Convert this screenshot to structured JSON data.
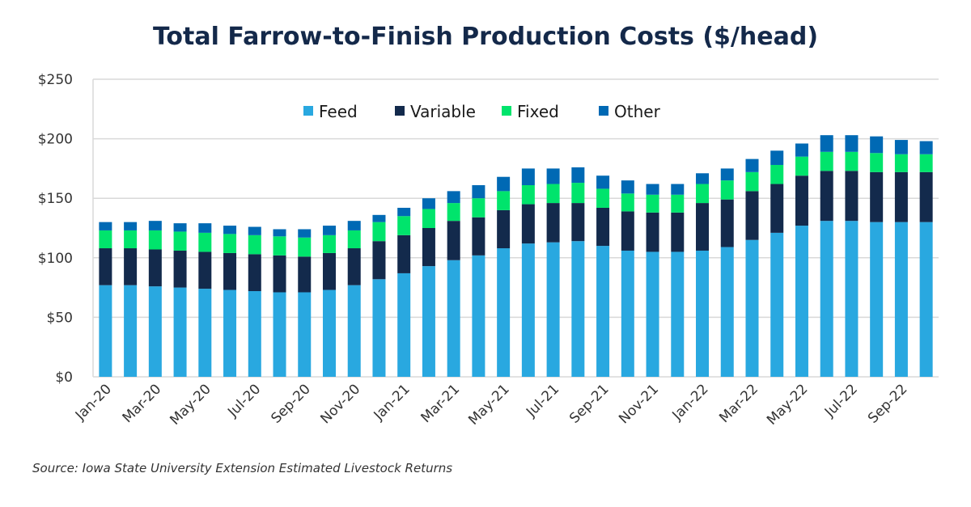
{
  "chart_data": {
    "type": "bar",
    "stacked": true,
    "title": "Total Farrow-to-Finish Production Costs ($/head)",
    "source": "Source: Iowa State University Extension Estimated Livestock Returns",
    "categories": [
      "Jan-20",
      "Feb-20",
      "Mar-20",
      "Apr-20",
      "May-20",
      "Jun-20",
      "Jul-20",
      "Aug-20",
      "Sep-20",
      "Oct-20",
      "Nov-20",
      "Dec-20",
      "Jan-21",
      "Feb-21",
      "Mar-21",
      "Apr-21",
      "May-21",
      "Jun-21",
      "Jul-21",
      "Aug-21",
      "Sep-21",
      "Oct-21",
      "Nov-21",
      "Dec-21",
      "Jan-22",
      "Feb-22",
      "Mar-22",
      "Apr-22",
      "May-22",
      "Jun-22",
      "Jul-22",
      "Aug-22",
      "Sep-22",
      "Oct-22"
    ],
    "x_tick_labels": [
      "Jan-20",
      "Mar-20",
      "May-20",
      "Jul-20",
      "Sep-20",
      "Nov-20",
      "Jan-21",
      "Mar-21",
      "May-21",
      "Jul-21",
      "Sep-21",
      "Nov-21",
      "Jan-22",
      "Mar-22",
      "May-22",
      "Jul-22",
      "Sep-22"
    ],
    "y_tick_labels": [
      "$0",
      "$50",
      "$100",
      "$150",
      "$200",
      "$250"
    ],
    "ylim": [
      0,
      250
    ],
    "grid": true,
    "legend_position": "top-center",
    "series": [
      {
        "name": "Feed",
        "color": "#29a8e0",
        "values": [
          77,
          77,
          76,
          75,
          74,
          73,
          72,
          71,
          71,
          73,
          77,
          82,
          87,
          93,
          98,
          102,
          108,
          112,
          113,
          114,
          110,
          106,
          105,
          105,
          106,
          109,
          115,
          121,
          127,
          131,
          131,
          130,
          130,
          130
        ]
      },
      {
        "name": "Variable",
        "color": "#132a4c",
        "values": [
          31,
          31,
          31,
          31,
          31,
          31,
          31,
          31,
          30,
          31,
          31,
          32,
          32,
          32,
          33,
          32,
          32,
          33,
          33,
          32,
          32,
          33,
          33,
          33,
          40,
          40,
          41,
          41,
          42,
          42,
          42,
          42,
          42,
          42
        ]
      },
      {
        "name": "Fixed",
        "color": "#00e46c",
        "values": [
          15,
          15,
          16,
          16,
          16,
          16,
          16,
          16,
          16,
          15,
          15,
          16,
          16,
          16,
          15,
          16,
          16,
          16,
          16,
          17,
          16,
          15,
          15,
          15,
          16,
          16,
          16,
          16,
          16,
          16,
          16,
          16,
          15,
          15
        ]
      },
      {
        "name": "Other",
        "color": "#0069b4",
        "values": [
          7,
          7,
          8,
          7,
          8,
          7,
          7,
          6,
          7,
          8,
          8,
          6,
          7,
          9,
          10,
          11,
          12,
          14,
          13,
          13,
          11,
          11,
          9,
          9,
          9,
          10,
          11,
          12,
          11,
          14,
          14,
          14,
          12,
          11
        ]
      }
    ]
  }
}
